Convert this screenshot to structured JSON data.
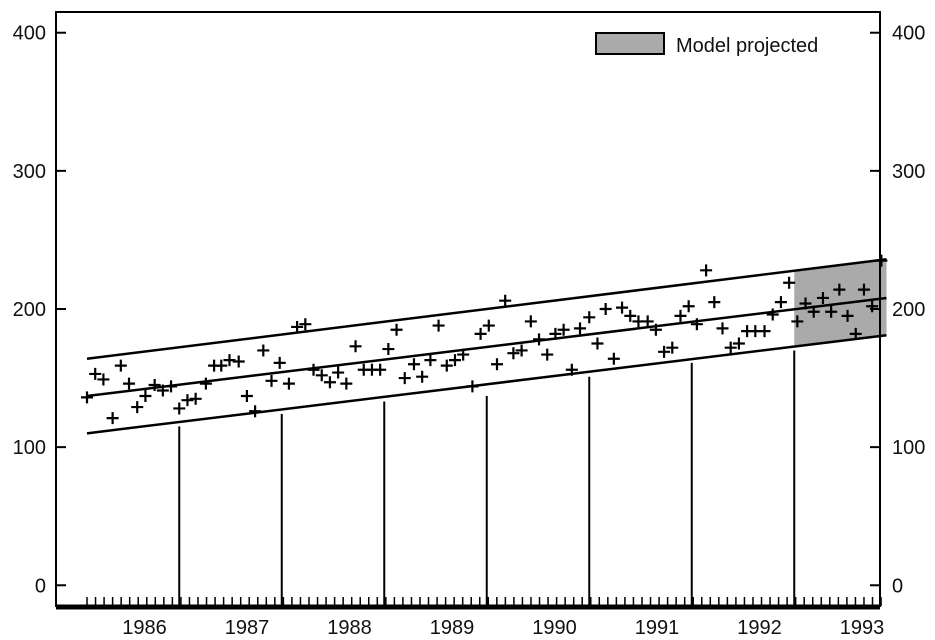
{
  "chart_data": {
    "type": "scatter",
    "title": "",
    "xlabel": "",
    "ylabel": "",
    "xlim": [
      1985.6,
      1993.6
    ],
    "ylim": [
      -15,
      415
    ],
    "y_ticks": [
      0,
      100,
      200,
      300,
      400
    ],
    "y_tick_labels": [
      "0",
      "100",
      "200",
      "300",
      "400"
    ],
    "x_tick_labels": [
      "1986",
      "1987",
      "1988",
      "1989",
      "1990",
      "1991",
      "1992",
      "1993"
    ],
    "x_tick_positions": [
      1986.2,
      1987.2,
      1988.2,
      1989.2,
      1990.2,
      1991.2,
      1992.2,
      1993.2
    ],
    "y_axis_both_sides": true,
    "grid": false,
    "legend": {
      "position": "top-right",
      "label": "Model projected",
      "color": "#aaaaaa"
    },
    "projection_region": {
      "x": [
        1992.5,
        1993.4
      ]
    },
    "trend_lines": [
      {
        "x": [
          1985.6,
          1993.4
        ],
        "y": [
          164,
          236
        ]
      },
      {
        "x": [
          1985.6,
          1993.4
        ],
        "y": [
          137,
          208
        ]
      },
      {
        "x": [
          1985.6,
          1993.4
        ],
        "y": [
          110,
          181
        ]
      }
    ],
    "year_markers": [
      {
        "x": 1986.5,
        "y": 115
      },
      {
        "x": 1987.5,
        "y": 124
      },
      {
        "x": 1988.5,
        "y": 133
      },
      {
        "x": 1989.5,
        "y": 137
      },
      {
        "x": 1990.5,
        "y": 151
      },
      {
        "x": 1991.5,
        "y": 161
      },
      {
        "x": 1992.5,
        "y": 170
      }
    ],
    "monthly_ticks": {
      "start": 1985.6,
      "end": 1993.4,
      "step": 0.0833
    },
    "points": [
      [
        1985.6,
        136
      ],
      [
        1985.68,
        153
      ],
      [
        1985.76,
        149
      ],
      [
        1985.85,
        121
      ],
      [
        1985.93,
        159
      ],
      [
        1986.01,
        146
      ],
      [
        1986.09,
        129
      ],
      [
        1986.17,
        137
      ],
      [
        1986.26,
        145
      ],
      [
        1986.34,
        141
      ],
      [
        1986.42,
        144
      ],
      [
        1986.5,
        128
      ],
      [
        1986.58,
        134
      ],
      [
        1986.66,
        135
      ],
      [
        1986.76,
        146
      ],
      [
        1986.84,
        159
      ],
      [
        1986.91,
        159
      ],
      [
        1986.99,
        163
      ],
      [
        1987.08,
        162
      ],
      [
        1987.16,
        137
      ],
      [
        1987.24,
        126
      ],
      [
        1987.32,
        170
      ],
      [
        1987.4,
        148
      ],
      [
        1987.48,
        161
      ],
      [
        1987.57,
        146
      ],
      [
        1987.65,
        187
      ],
      [
        1987.73,
        189
      ],
      [
        1987.81,
        156
      ],
      [
        1987.89,
        152
      ],
      [
        1987.97,
        147
      ],
      [
        1988.05,
        154
      ],
      [
        1988.13,
        146
      ],
      [
        1988.22,
        173
      ],
      [
        1988.3,
        156
      ],
      [
        1988.38,
        156
      ],
      [
        1988.46,
        156
      ],
      [
        1988.54,
        171
      ],
      [
        1988.62,
        185
      ],
      [
        1988.7,
        150
      ],
      [
        1988.79,
        160
      ],
      [
        1988.87,
        151
      ],
      [
        1988.95,
        163
      ],
      [
        1989.03,
        188
      ],
      [
        1989.11,
        159
      ],
      [
        1989.19,
        163
      ],
      [
        1989.27,
        167
      ],
      [
        1989.36,
        144
      ],
      [
        1989.44,
        182
      ],
      [
        1989.52,
        188
      ],
      [
        1989.6,
        160
      ],
      [
        1989.68,
        206
      ],
      [
        1989.76,
        168
      ],
      [
        1989.84,
        170
      ],
      [
        1989.93,
        191
      ],
      [
        1990.01,
        178
      ],
      [
        1990.09,
        167
      ],
      [
        1990.17,
        182
      ],
      [
        1990.25,
        185
      ],
      [
        1990.33,
        156
      ],
      [
        1990.41,
        186
      ],
      [
        1990.5,
        194
      ],
      [
        1990.58,
        175
      ],
      [
        1990.66,
        200
      ],
      [
        1990.74,
        164
      ],
      [
        1990.82,
        201
      ],
      [
        1990.9,
        195
      ],
      [
        1990.98,
        191
      ],
      [
        1991.07,
        191
      ],
      [
        1991.15,
        185
      ],
      [
        1991.23,
        169
      ],
      [
        1991.31,
        172
      ],
      [
        1991.39,
        195
      ],
      [
        1991.47,
        202
      ],
      [
        1991.55,
        189
      ],
      [
        1991.64,
        228
      ],
      [
        1991.72,
        205
      ],
      [
        1991.8,
        186
      ],
      [
        1991.88,
        172
      ],
      [
        1991.96,
        175
      ],
      [
        1992.04,
        184
      ],
      [
        1992.12,
        184
      ],
      [
        1992.21,
        184
      ],
      [
        1992.29,
        196
      ],
      [
        1992.37,
        205
      ],
      [
        1992.45,
        219
      ],
      [
        1992.53,
        191
      ],
      [
        1992.61,
        204
      ],
      [
        1992.69,
        198
      ],
      [
        1992.78,
        208
      ],
      [
        1992.86,
        198
      ],
      [
        1992.94,
        214
      ],
      [
        1993.02,
        195
      ],
      [
        1993.1,
        182
      ],
      [
        1993.18,
        214
      ],
      [
        1993.26,
        202
      ],
      [
        1993.35,
        235
      ]
    ]
  }
}
